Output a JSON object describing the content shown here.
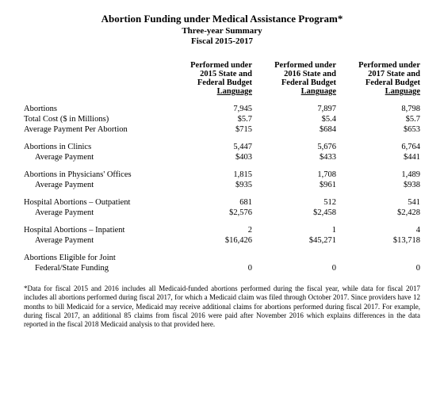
{
  "title": {
    "main": "Abortion Funding under Medical Assistance Program*",
    "sub1": "Three-year Summary",
    "sub2": "Fiscal 2015-2017"
  },
  "columns": [
    {
      "l1": "Performed under",
      "l2": "2015 State and",
      "l3": "Federal Budget",
      "l4": "Language"
    },
    {
      "l1": "Performed under",
      "l2": "2016 State and",
      "l3": "Federal Budget",
      "l4": "Language"
    },
    {
      "l1": "Performed under",
      "l2": "2017 State and",
      "l3": "Federal Budget",
      "l4": "Language"
    }
  ],
  "rows": {
    "abortions": {
      "label": "Abortions",
      "v": [
        "7,945",
        "7,897",
        "8,798"
      ]
    },
    "total_cost": {
      "label": "Total Cost ($ in Millions)",
      "v": [
        "$5.7",
        "$5.4",
        "$5.7"
      ]
    },
    "avg_per_abortion": {
      "label": "Average Payment Per Abortion",
      "v": [
        "$715",
        "$684",
        "$653"
      ]
    },
    "clinics": {
      "label": "Abortions in Clinics",
      "v": [
        "5,447",
        "5,676",
        "6,764"
      ]
    },
    "clinics_avg": {
      "label": "Average Payment",
      "v": [
        "$403",
        "$433",
        "$441"
      ]
    },
    "phys": {
      "label": "Abortions in Physicians' Offices",
      "v": [
        "1,815",
        "1,708",
        "1,489"
      ]
    },
    "phys_avg": {
      "label": "Average Payment",
      "v": [
        "$935",
        "$961",
        "$938"
      ]
    },
    "hosp_out": {
      "label": "Hospital Abortions – Outpatient",
      "v": [
        "681",
        "512",
        "541"
      ]
    },
    "hosp_out_avg": {
      "label": "Average Payment",
      "v": [
        "$2,576",
        "$2,458",
        "$2,428"
      ]
    },
    "hosp_in": {
      "label": "Hospital Abortions – Inpatient",
      "v": [
        "2",
        "1",
        "4"
      ]
    },
    "hosp_in_avg": {
      "label": "Average Payment",
      "v": [
        "$16,426",
        "$45,271",
        "$13,718"
      ]
    },
    "eligible_l1": {
      "label": "Abortions Eligible for Joint"
    },
    "eligible_l2": {
      "label": "Federal/State Funding",
      "v": [
        "0",
        "0",
        "0"
      ]
    }
  },
  "footnote": "*Data for fiscal 2015 and 2016 includes all Medicaid-funded abortions performed during the fiscal year, while data for fiscal 2017 includes all abortions performed during fiscal 2017, for which a Medicaid claim was filed through October 2017. Since providers have 12 months to bill Medicaid for a service, Medicaid may receive additional claims for abortions performed during fiscal 2017. For example, during fiscal 2017, an additional 85 claims from fiscal 2016 were paid after November 2016 which explains differences in the data reported in the fiscal 2018 Medicaid analysis to that provided here."
}
